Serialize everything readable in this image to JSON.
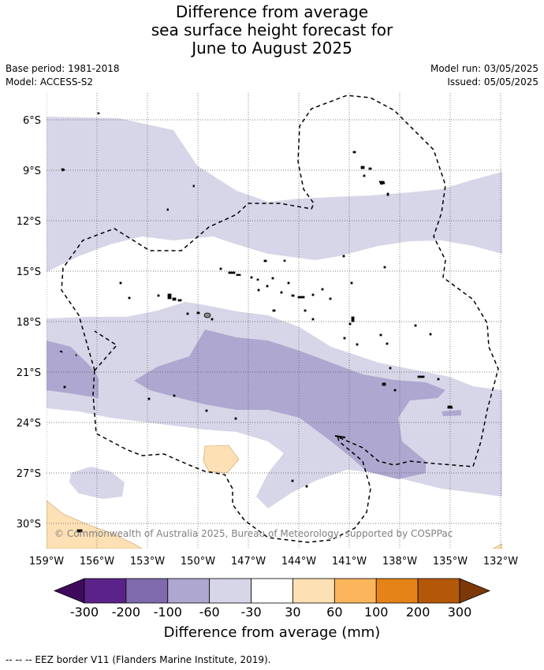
{
  "title": {
    "line1": "Difference from average",
    "line2": "sea surface height forecast for",
    "line3": "June to August 2025"
  },
  "meta": {
    "base_period": "Base period: 1981-2018",
    "model": "Model: ACCESS-S2",
    "model_run": "Model run: 03/05/2025",
    "issued": "Issued: 05/05/2025"
  },
  "map": {
    "lon_labels": [
      "159°W",
      "156°W",
      "153°W",
      "150°W",
      "147°W",
      "144°W",
      "141°W",
      "138°W",
      "135°W",
      "132°W"
    ],
    "lat_labels": [
      "6°S",
      "9°S",
      "12°S",
      "15°S",
      "18°S",
      "21°S",
      "24°S",
      "27°S",
      "30°S"
    ],
    "copyright": "© Commonwealth of Australia 2025, Bureau of Meteorology, supported by COSPPac",
    "colors": {
      "neg300": "#3f0a5c",
      "neg200": "#5b2389",
      "neg100": "#7f6aad",
      "neg60": "#aea7d0",
      "neg30": "#d6d6e8",
      "zero": "#ffffff",
      "pos30": "#fde0b4",
      "pos60": "#fbb65d",
      "pos100": "#e48317",
      "pos200": "#b35808",
      "pos300": "#7c3806"
    }
  },
  "colorbar": {
    "ticks": [
      "-300",
      "-200",
      "-100",
      "-60",
      "-30",
      "30",
      "60",
      "100",
      "200",
      "300"
    ],
    "label": "Difference from average (mm)"
  },
  "footer": "--  --  -- EEZ border V11 (Flanders Marine Institute, 2019)."
}
